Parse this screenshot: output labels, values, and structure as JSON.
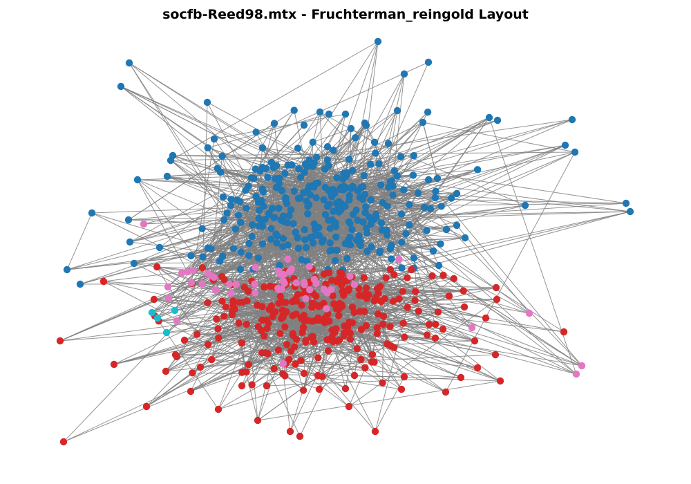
{
  "title": "socfb-Reed98.mtx - Fruchterman_reingold Layout",
  "chart_data": {
    "type": "network",
    "layout": "Fruchterman_reingold",
    "edge_color": "#808080",
    "community_colors": {
      "blue": "#1f77b4",
      "red": "#d62728",
      "pink": "#e377c2",
      "cyan": "#17becf"
    },
    "grid": false,
    "axes": false
  }
}
